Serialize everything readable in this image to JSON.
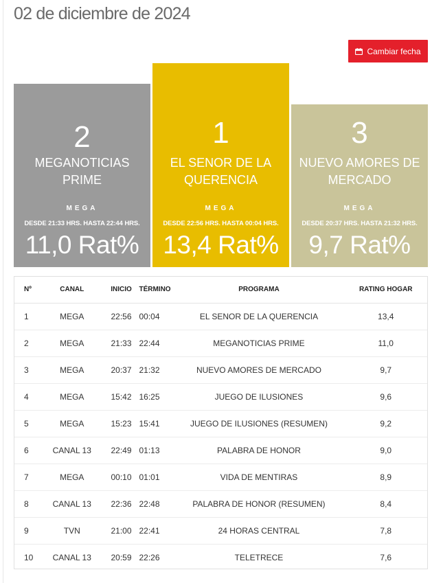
{
  "header": {
    "date": "02 de diciembre de 2024"
  },
  "actions": {
    "change_date_label": "Cambiar fecha",
    "change_date_icon": "calendar-icon"
  },
  "colors": {
    "accent": "#e4202b",
    "first": "#e8bd00",
    "second": "#9b9b9b",
    "third": "#c9c49a"
  },
  "podium": {
    "first": {
      "rank": "1",
      "program": "EL SENOR DE LA QUERENCIA",
      "channel": "MEGA",
      "time": "DESDE 22:56 HRS. HASTA 00:04 HRS.",
      "rating": "13,4 Rat%"
    },
    "second": {
      "rank": "2",
      "program": "MEGANOTICIAS PRIME",
      "channel": "MEGA",
      "time": "DESDE 21:33 HRS. HASTA 22:44 HRS.",
      "rating": "11,0 Rat%"
    },
    "third": {
      "rank": "3",
      "program": "NUEVO AMORES DE MERCADO",
      "channel": "MEGA",
      "time": "DESDE 20:37 HRS. HASTA 21:32 HRS.",
      "rating": "9,7 Rat%"
    }
  },
  "table": {
    "headers": {
      "no": "Nº",
      "canal": "CANAL",
      "inicio": "INICIO",
      "termino": "TÉRMINO",
      "programa": "PROGRAMA",
      "rating": "RATING HOGAR"
    },
    "rows": [
      {
        "no": "1",
        "canal": "MEGA",
        "inicio": "22:56",
        "termino": "00:04",
        "programa": "EL SENOR DE LA QUERENCIA",
        "rating": "13,4"
      },
      {
        "no": "2",
        "canal": "MEGA",
        "inicio": "21:33",
        "termino": "22:44",
        "programa": "MEGANOTICIAS PRIME",
        "rating": "11,0"
      },
      {
        "no": "3",
        "canal": "MEGA",
        "inicio": "20:37",
        "termino": "21:32",
        "programa": "NUEVO AMORES DE MERCADO",
        "rating": "9,7"
      },
      {
        "no": "4",
        "canal": "MEGA",
        "inicio": "15:42",
        "termino": "16:25",
        "programa": "JUEGO DE ILUSIONES",
        "rating": "9,6"
      },
      {
        "no": "5",
        "canal": "MEGA",
        "inicio": "15:23",
        "termino": "15:41",
        "programa": "JUEGO DE ILUSIONES (RESUMEN)",
        "rating": "9,2"
      },
      {
        "no": "6",
        "canal": "CANAL 13",
        "inicio": "22:49",
        "termino": "01:13",
        "programa": "PALABRA DE HONOR",
        "rating": "9,0"
      },
      {
        "no": "7",
        "canal": "MEGA",
        "inicio": "00:10",
        "termino": "01:01",
        "programa": "VIDA DE MENTIRAS",
        "rating": "8,9"
      },
      {
        "no": "8",
        "canal": "CANAL 13",
        "inicio": "22:36",
        "termino": "22:48",
        "programa": "PALABRA DE HONOR (RESUMEN)",
        "rating": "8,4"
      },
      {
        "no": "9",
        "canal": "TVN",
        "inicio": "21:00",
        "termino": "22:41",
        "programa": "24 HORAS CENTRAL",
        "rating": "7,8"
      },
      {
        "no": "10",
        "canal": "CANAL 13",
        "inicio": "20:59",
        "termino": "22:26",
        "programa": "TELETRECE",
        "rating": "7,6"
      }
    ]
  }
}
